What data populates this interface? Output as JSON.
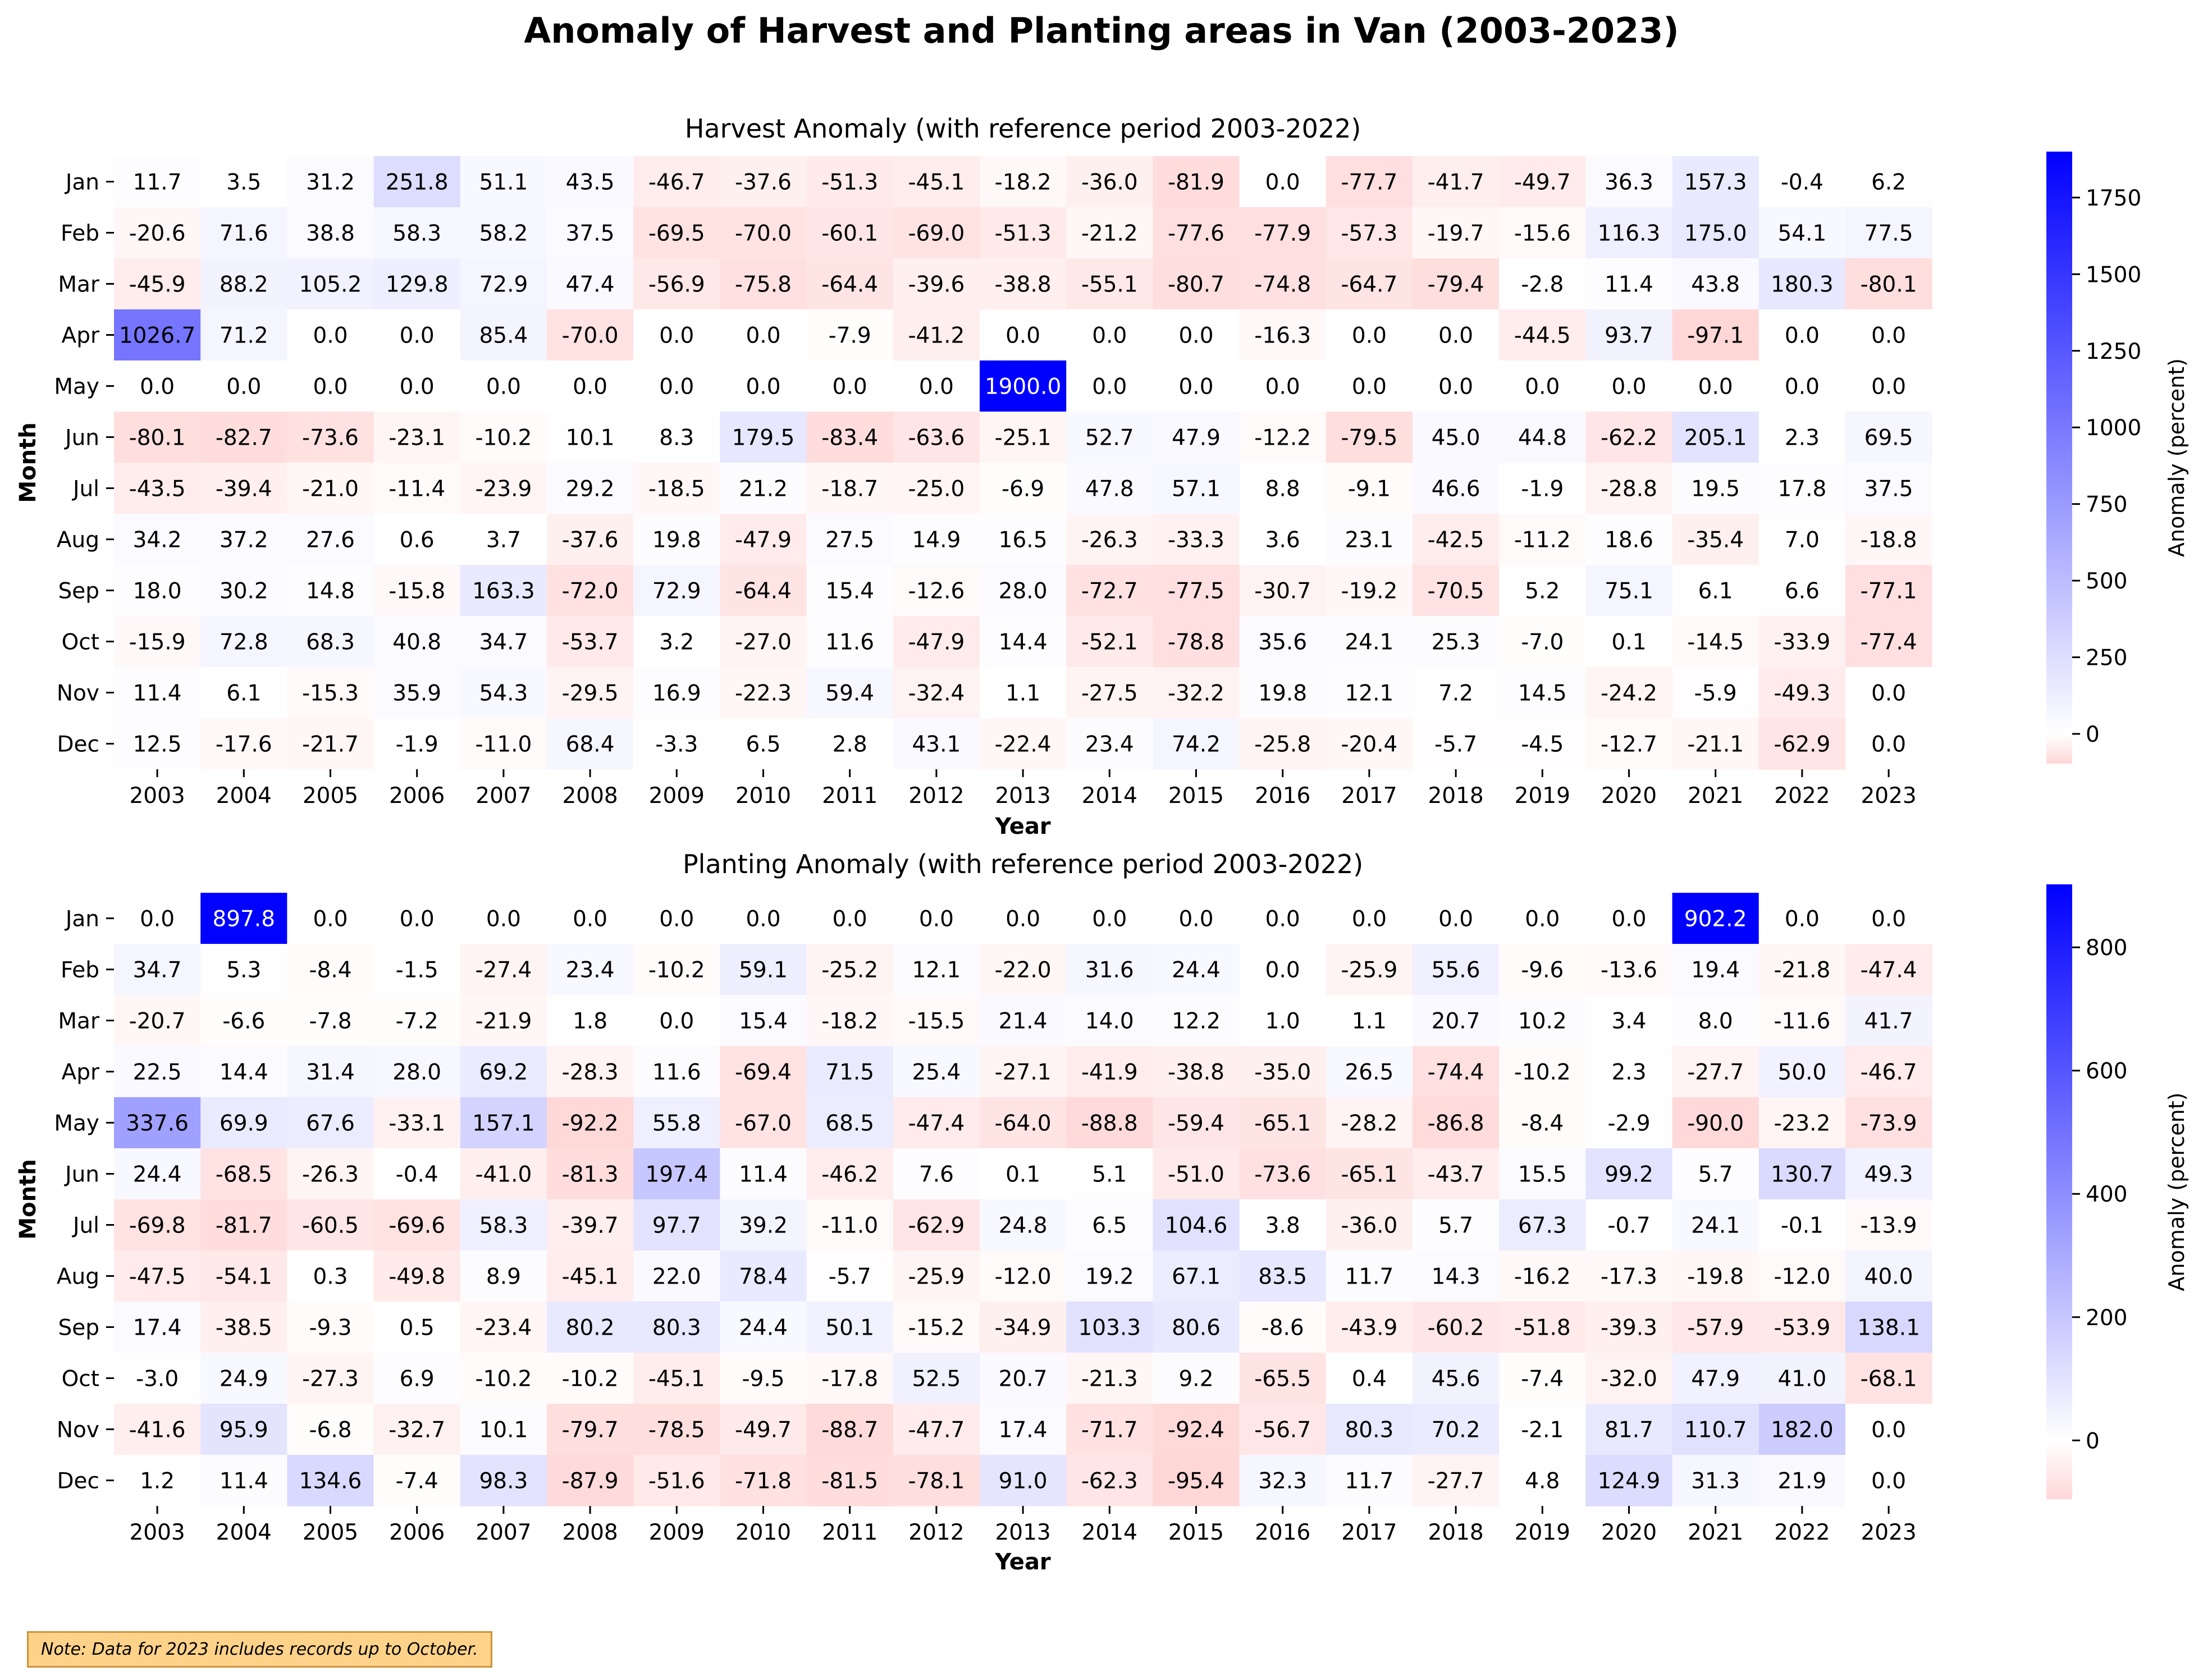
{
  "title": "Anomaly of Harvest and Planting areas in Van (2003-2023)",
  "note": "Note: Data for 2023 includes records up to October.",
  "chart_data": [
    {
      "type": "heatmap",
      "title": "Harvest Anomaly (with reference period 2003-2022)",
      "xlabel": "Year",
      "ylabel": "Month",
      "colorbar_label": "Anomaly (percent)",
      "colorbar_ticks": [
        0,
        250,
        500,
        750,
        1000,
        1250,
        1500,
        1750
      ],
      "vmin": -97.1,
      "vmax": 1900.0,
      "colors": {
        "low": "#ffd7d7",
        "zero": "#ffffff",
        "high": "#0000ff"
      },
      "x": [
        "2003",
        "2004",
        "2005",
        "2006",
        "2007",
        "2008",
        "2009",
        "2010",
        "2011",
        "2012",
        "2013",
        "2014",
        "2015",
        "2016",
        "2017",
        "2018",
        "2019",
        "2020",
        "2021",
        "2022",
        "2023"
      ],
      "y": [
        "Jan",
        "Feb",
        "Mar",
        "Apr",
        "May",
        "Jun",
        "Jul",
        "Aug",
        "Sep",
        "Oct",
        "Nov",
        "Dec"
      ],
      "values": [
        [
          11.7,
          3.5,
          31.2,
          251.8,
          51.1,
          43.5,
          -46.7,
          -37.6,
          -51.3,
          -45.1,
          -18.2,
          -36.0,
          -81.9,
          0.0,
          -77.7,
          -41.7,
          -49.7,
          36.3,
          157.3,
          -0.4,
          6.2
        ],
        [
          -20.6,
          71.6,
          38.8,
          58.3,
          58.2,
          37.5,
          -69.5,
          -70.0,
          -60.1,
          -69.0,
          -51.3,
          -21.2,
          -77.6,
          -77.9,
          -57.3,
          -19.7,
          -15.6,
          116.3,
          175.0,
          54.1,
          77.5
        ],
        [
          -45.9,
          88.2,
          105.2,
          129.8,
          72.9,
          47.4,
          -56.9,
          -75.8,
          -64.4,
          -39.6,
          -38.8,
          -55.1,
          -80.7,
          -74.8,
          -64.7,
          -79.4,
          -2.8,
          11.4,
          43.8,
          180.3,
          -80.1
        ],
        [
          1026.7,
          71.2,
          0.0,
          0.0,
          85.4,
          -70.0,
          0.0,
          0.0,
          -7.9,
          -41.2,
          0.0,
          0.0,
          0.0,
          -16.3,
          0.0,
          0.0,
          -44.5,
          93.7,
          -97.1,
          0.0,
          0.0
        ],
        [
          0.0,
          0.0,
          0.0,
          0.0,
          0.0,
          0.0,
          0.0,
          0.0,
          0.0,
          0.0,
          1900.0,
          0.0,
          0.0,
          0.0,
          0.0,
          0.0,
          0.0,
          0.0,
          0.0,
          0.0,
          0.0
        ],
        [
          -80.1,
          -82.7,
          -73.6,
          -23.1,
          -10.2,
          10.1,
          8.3,
          179.5,
          -83.4,
          -63.6,
          -25.1,
          52.7,
          47.9,
          -12.2,
          -79.5,
          45.0,
          44.8,
          -62.2,
          205.1,
          2.3,
          69.5
        ],
        [
          -43.5,
          -39.4,
          -21.0,
          -11.4,
          -23.9,
          29.2,
          -18.5,
          21.2,
          -18.7,
          -25.0,
          -6.9,
          47.8,
          57.1,
          8.8,
          -9.1,
          46.6,
          -1.9,
          -28.8,
          19.5,
          17.8,
          37.5
        ],
        [
          34.2,
          37.2,
          27.6,
          0.6,
          3.7,
          -37.6,
          19.8,
          -47.9,
          27.5,
          14.9,
          16.5,
          -26.3,
          -33.3,
          3.6,
          23.1,
          -42.5,
          -11.2,
          18.6,
          -35.4,
          7.0,
          -18.8
        ],
        [
          18.0,
          30.2,
          14.8,
          -15.8,
          163.3,
          -72.0,
          72.9,
          -64.4,
          15.4,
          -12.6,
          28.0,
          -72.7,
          -77.5,
          -30.7,
          -19.2,
          -70.5,
          5.2,
          75.1,
          6.1,
          6.6,
          -77.1
        ],
        [
          -15.9,
          72.8,
          68.3,
          40.8,
          34.7,
          -53.7,
          3.2,
          -27.0,
          11.6,
          -47.9,
          14.4,
          -52.1,
          -78.8,
          35.6,
          24.1,
          25.3,
          -7.0,
          0.1,
          -14.5,
          -33.9,
          -77.4
        ],
        [
          11.4,
          6.1,
          -15.3,
          35.9,
          54.3,
          -29.5,
          16.9,
          -22.3,
          59.4,
          -32.4,
          1.1,
          -27.5,
          -32.2,
          19.8,
          12.1,
          7.2,
          14.5,
          -24.2,
          -5.9,
          -49.3,
          0.0
        ],
        [
          12.5,
          -17.6,
          -21.7,
          -1.9,
          -11.0,
          68.4,
          -3.3,
          6.5,
          2.8,
          43.1,
          -22.4,
          23.4,
          74.2,
          -25.8,
          -20.4,
          -5.7,
          -4.5,
          -12.7,
          -21.1,
          -62.9,
          0.0
        ]
      ]
    },
    {
      "type": "heatmap",
      "title": "Planting Anomaly (with reference period 2003-2022)",
      "xlabel": "Year",
      "ylabel": "Month",
      "colorbar_label": "Anomaly (percent)",
      "colorbar_ticks": [
        0,
        200,
        400,
        600,
        800
      ],
      "vmin": -95.4,
      "vmax": 902.2,
      "colors": {
        "low": "#ffd7d7",
        "zero": "#ffffff",
        "high": "#0000ff"
      },
      "x": [
        "2003",
        "2004",
        "2005",
        "2006",
        "2007",
        "2008",
        "2009",
        "2010",
        "2011",
        "2012",
        "2013",
        "2014",
        "2015",
        "2016",
        "2017",
        "2018",
        "2019",
        "2020",
        "2021",
        "2022",
        "2023"
      ],
      "y": [
        "Jan",
        "Feb",
        "Mar",
        "Apr",
        "May",
        "Jun",
        "Jul",
        "Aug",
        "Sep",
        "Oct",
        "Nov",
        "Dec"
      ],
      "values": [
        [
          0.0,
          897.8,
          0.0,
          0.0,
          0.0,
          0.0,
          0.0,
          0.0,
          0.0,
          0.0,
          0.0,
          0.0,
          0.0,
          0.0,
          0.0,
          0.0,
          0.0,
          0.0,
          902.2,
          0.0,
          0.0
        ],
        [
          34.7,
          5.3,
          -8.4,
          -1.5,
          -27.4,
          23.4,
          -10.2,
          59.1,
          -25.2,
          12.1,
          -22.0,
          31.6,
          24.4,
          0.0,
          -25.9,
          55.6,
          -9.6,
          -13.6,
          19.4,
          -21.8,
          -47.4
        ],
        [
          -20.7,
          -6.6,
          -7.8,
          -7.2,
          -21.9,
          1.8,
          0.0,
          15.4,
          -18.2,
          -15.5,
          21.4,
          14.0,
          12.2,
          1.0,
          1.1,
          20.7,
          10.2,
          3.4,
          8.0,
          -11.6,
          41.7
        ],
        [
          22.5,
          14.4,
          31.4,
          28.0,
          69.2,
          -28.3,
          11.6,
          -69.4,
          71.5,
          25.4,
          -27.1,
          -41.9,
          -38.8,
          -35.0,
          26.5,
          -74.4,
          -10.2,
          2.3,
          -27.7,
          50.0,
          -46.7
        ],
        [
          337.6,
          69.9,
          67.6,
          -33.1,
          157.1,
          -92.2,
          55.8,
          -67.0,
          68.5,
          -47.4,
          -64.0,
          -88.8,
          -59.4,
          -65.1,
          -28.2,
          -86.8,
          -8.4,
          -2.9,
          -90.0,
          -23.2,
          -73.9
        ],
        [
          24.4,
          -68.5,
          -26.3,
          -0.4,
          -41.0,
          -81.3,
          197.4,
          11.4,
          -46.2,
          7.6,
          0.1,
          5.1,
          -51.0,
          -73.6,
          -65.1,
          -43.7,
          15.5,
          99.2,
          5.7,
          130.7,
          49.3
        ],
        [
          -69.8,
          -81.7,
          -60.5,
          -69.6,
          58.3,
          -39.7,
          97.7,
          39.2,
          -11.0,
          -62.9,
          24.8,
          6.5,
          104.6,
          3.8,
          -36.0,
          5.7,
          67.3,
          -0.7,
          24.1,
          -0.1,
          -13.9
        ],
        [
          -47.5,
          -54.1,
          0.3,
          -49.8,
          8.9,
          -45.1,
          22.0,
          78.4,
          -5.7,
          -25.9,
          -12.0,
          19.2,
          67.1,
          83.5,
          11.7,
          14.3,
          -16.2,
          -17.3,
          -19.8,
          -12.0,
          40.0
        ],
        [
          17.4,
          -38.5,
          -9.3,
          0.5,
          -23.4,
          80.2,
          80.3,
          24.4,
          50.1,
          -15.2,
          -34.9,
          103.3,
          80.6,
          -8.6,
          -43.9,
          -60.2,
          -51.8,
          -39.3,
          -57.9,
          -53.9,
          138.1
        ],
        [
          -3.0,
          24.9,
          -27.3,
          6.9,
          -10.2,
          -10.2,
          -45.1,
          -9.5,
          -17.8,
          52.5,
          20.7,
          -21.3,
          9.2,
          -65.5,
          0.4,
          45.6,
          -7.4,
          -32.0,
          47.9,
          41.0,
          -68.1
        ],
        [
          -41.6,
          95.9,
          -6.8,
          -32.7,
          10.1,
          -79.7,
          -78.5,
          -49.7,
          -88.7,
          -47.7,
          17.4,
          -71.7,
          -92.4,
          -56.7,
          80.3,
          70.2,
          -2.1,
          81.7,
          110.7,
          182.0,
          0.0
        ],
        [
          1.2,
          11.4,
          134.6,
          -7.4,
          98.3,
          -87.9,
          -51.6,
          -71.8,
          -81.5,
          -78.1,
          91.0,
          -62.3,
          -95.4,
          32.3,
          11.7,
          -27.7,
          4.8,
          124.9,
          31.3,
          21.9,
          0.0
        ]
      ]
    }
  ]
}
